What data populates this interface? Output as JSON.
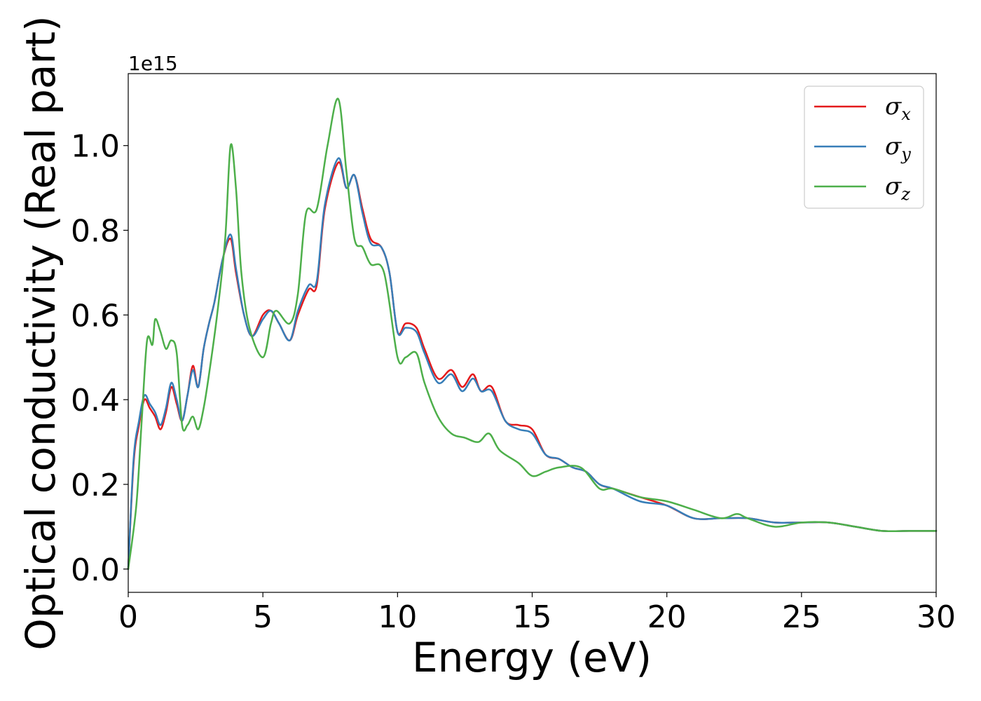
{
  "chart_data": {
    "type": "line",
    "xlabel": "Energy (eV)",
    "ylabel": "Optical conductivity (Real part)",
    "y_offset_text": "1e15",
    "xlim": [
      0,
      30
    ],
    "ylim": [
      -0.055,
      1.17
    ],
    "xticks": [
      0,
      5,
      10,
      15,
      20,
      25,
      30
    ],
    "xtick_labels": [
      "0",
      "5",
      "10",
      "15",
      "20",
      "25",
      "30"
    ],
    "yticks": [
      0.0,
      0.2,
      0.4,
      0.6,
      0.8,
      1.0
    ],
    "ytick_labels": [
      "0.0",
      "0.2",
      "0.4",
      "0.6",
      "0.8",
      "1.0"
    ],
    "grid": false,
    "legend_position": "top-right",
    "series": [
      {
        "name": "σ",
        "subscript": "x",
        "color": "#e41a1c",
        "x": [
          0,
          0.2,
          0.4,
          0.6,
          0.8,
          1.0,
          1.2,
          1.4,
          1.6,
          1.8,
          2.0,
          2.2,
          2.4,
          2.6,
          2.8,
          3.0,
          3.2,
          3.5,
          3.8,
          4.0,
          4.3,
          4.6,
          5.0,
          5.3,
          5.6,
          6.0,
          6.3,
          6.7,
          7.0,
          7.3,
          7.8,
          8.1,
          8.4,
          8.7,
          9.0,
          9.4,
          9.7,
          10.0,
          10.3,
          10.7,
          11.0,
          11.5,
          12.0,
          12.4,
          12.8,
          13.1,
          13.5,
          14.0,
          14.5,
          15.0,
          15.5,
          16.0,
          16.5,
          17.0,
          17.5,
          18.0,
          19.0,
          20.0,
          21.0,
          22.0,
          23.0,
          24.0,
          25.0,
          26.0,
          27.0,
          28.0,
          29.0,
          30.0
        ],
        "values": [
          0.0,
          0.25,
          0.34,
          0.4,
          0.38,
          0.36,
          0.33,
          0.37,
          0.43,
          0.39,
          0.35,
          0.41,
          0.48,
          0.43,
          0.52,
          0.58,
          0.63,
          0.73,
          0.78,
          0.7,
          0.6,
          0.55,
          0.6,
          0.61,
          0.58,
          0.54,
          0.6,
          0.66,
          0.67,
          0.85,
          0.96,
          0.9,
          0.93,
          0.85,
          0.78,
          0.76,
          0.7,
          0.56,
          0.58,
          0.57,
          0.52,
          0.45,
          0.47,
          0.43,
          0.46,
          0.42,
          0.43,
          0.35,
          0.34,
          0.33,
          0.27,
          0.26,
          0.24,
          0.23,
          0.2,
          0.19,
          0.17,
          0.15,
          0.12,
          0.12,
          0.12,
          0.11,
          0.11,
          0.11,
          0.1,
          0.09,
          0.09,
          0.09
        ]
      },
      {
        "name": "σ",
        "subscript": "y",
        "color": "#377eb8",
        "x": [
          0,
          0.2,
          0.4,
          0.6,
          0.8,
          1.0,
          1.2,
          1.4,
          1.6,
          1.8,
          2.0,
          2.2,
          2.4,
          2.6,
          2.8,
          3.0,
          3.2,
          3.5,
          3.8,
          4.0,
          4.3,
          4.6,
          5.0,
          5.3,
          5.6,
          6.0,
          6.3,
          6.7,
          7.0,
          7.3,
          7.8,
          8.1,
          8.4,
          8.7,
          9.0,
          9.4,
          9.7,
          10.0,
          10.3,
          10.7,
          11.0,
          11.5,
          12.0,
          12.4,
          12.8,
          13.1,
          13.5,
          14.0,
          14.5,
          15.0,
          15.5,
          16.0,
          16.5,
          17.0,
          17.5,
          18.0,
          19.0,
          20.0,
          21.0,
          22.0,
          23.0,
          24.0,
          25.0,
          26.0,
          27.0,
          28.0,
          29.0,
          30.0
        ],
        "values": [
          0.0,
          0.26,
          0.35,
          0.41,
          0.39,
          0.37,
          0.34,
          0.38,
          0.44,
          0.4,
          0.35,
          0.41,
          0.47,
          0.43,
          0.52,
          0.58,
          0.63,
          0.73,
          0.79,
          0.71,
          0.6,
          0.55,
          0.59,
          0.61,
          0.58,
          0.54,
          0.61,
          0.67,
          0.68,
          0.86,
          0.97,
          0.9,
          0.93,
          0.84,
          0.77,
          0.76,
          0.7,
          0.56,
          0.57,
          0.56,
          0.51,
          0.44,
          0.46,
          0.42,
          0.45,
          0.42,
          0.42,
          0.35,
          0.33,
          0.32,
          0.27,
          0.26,
          0.24,
          0.23,
          0.2,
          0.19,
          0.16,
          0.15,
          0.12,
          0.12,
          0.12,
          0.11,
          0.11,
          0.11,
          0.1,
          0.09,
          0.09,
          0.09
        ]
      },
      {
        "name": "σ",
        "subscript": "z",
        "color": "#4daf4a",
        "x": [
          0,
          0.3,
          0.5,
          0.7,
          0.9,
          1.0,
          1.2,
          1.4,
          1.6,
          1.8,
          2.0,
          2.2,
          2.4,
          2.6,
          2.8,
          3.0,
          3.3,
          3.6,
          3.8,
          4.0,
          4.2,
          4.5,
          5.0,
          5.3,
          5.5,
          6.0,
          6.3,
          6.6,
          7.0,
          7.4,
          7.8,
          8.1,
          8.4,
          8.7,
          9.0,
          9.5,
          10.0,
          10.3,
          10.7,
          11.0,
          11.5,
          12.0,
          12.5,
          13.0,
          13.4,
          13.8,
          14.5,
          15.0,
          15.5,
          16.0,
          16.8,
          17.5,
          18.0,
          19.0,
          20.0,
          21.0,
          22.0,
          22.6,
          23.0,
          24.0,
          25.0,
          26.0,
          27.0,
          28.0,
          29.0,
          30.0
        ],
        "values": [
          0.0,
          0.15,
          0.35,
          0.54,
          0.53,
          0.59,
          0.56,
          0.52,
          0.54,
          0.51,
          0.34,
          0.34,
          0.36,
          0.33,
          0.38,
          0.46,
          0.6,
          0.78,
          1.0,
          0.9,
          0.7,
          0.57,
          0.5,
          0.58,
          0.61,
          0.58,
          0.65,
          0.84,
          0.85,
          1.0,
          1.11,
          0.94,
          0.78,
          0.76,
          0.72,
          0.7,
          0.5,
          0.5,
          0.51,
          0.44,
          0.36,
          0.32,
          0.31,
          0.3,
          0.32,
          0.28,
          0.25,
          0.22,
          0.23,
          0.24,
          0.24,
          0.19,
          0.19,
          0.17,
          0.16,
          0.14,
          0.12,
          0.13,
          0.12,
          0.1,
          0.11,
          0.11,
          0.1,
          0.09,
          0.09,
          0.09
        ]
      }
    ]
  }
}
